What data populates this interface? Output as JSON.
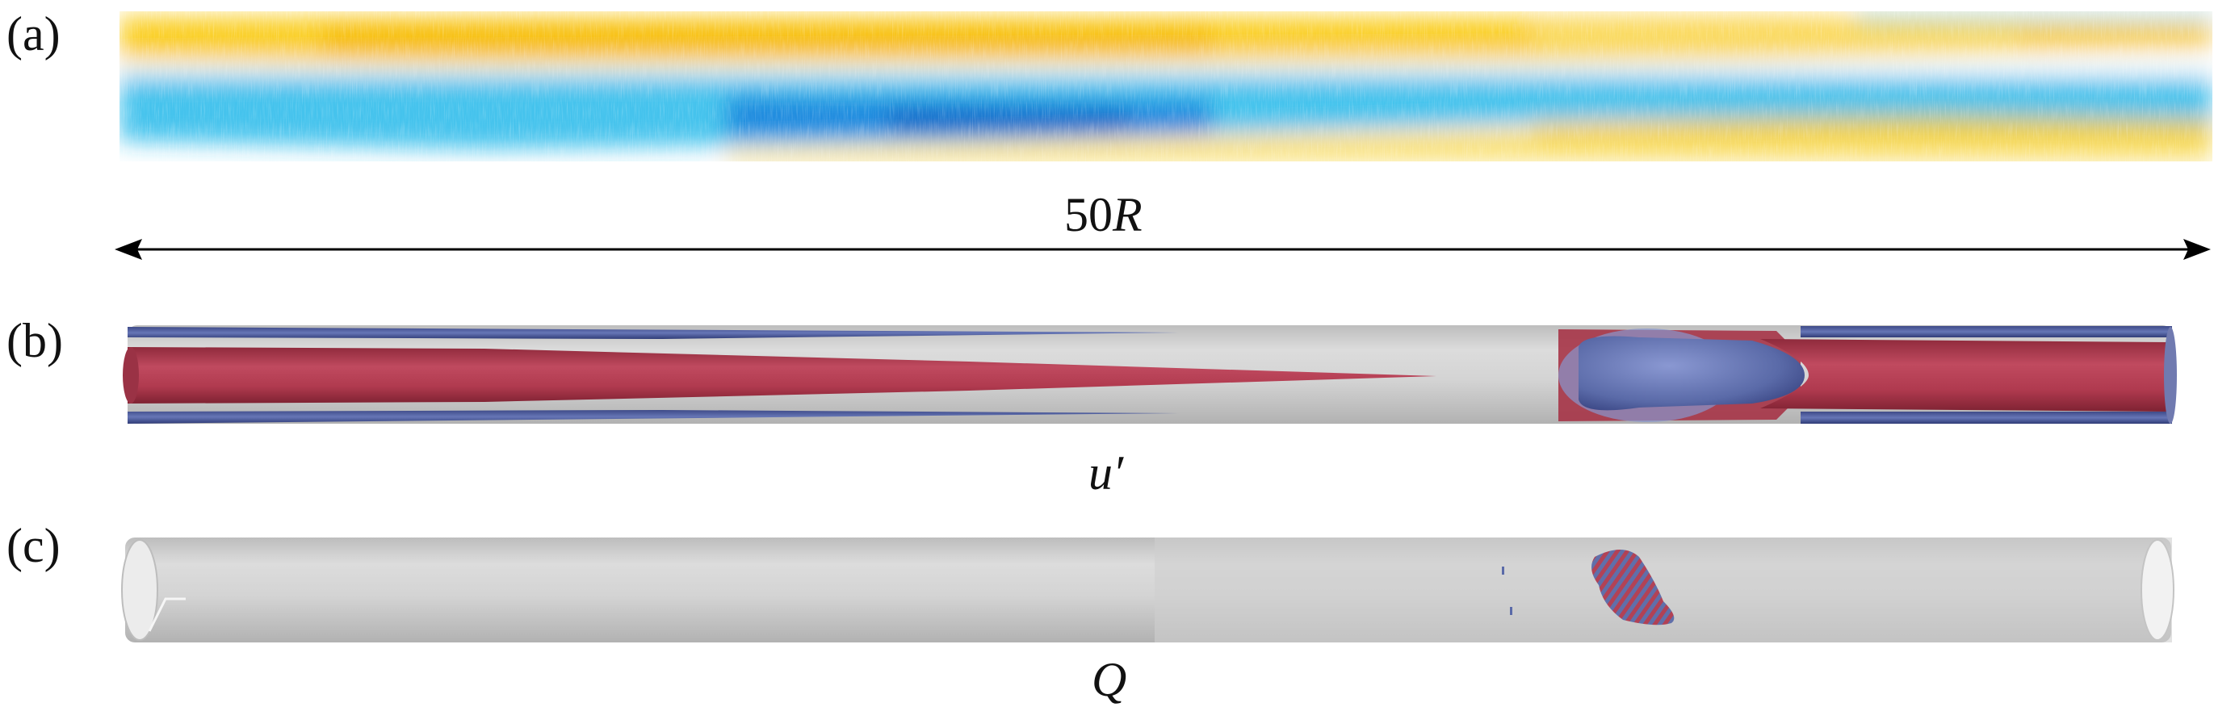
{
  "panels": {
    "a": {
      "label": "(a)"
    },
    "b": {
      "label": "(b)",
      "caption": "u′"
    },
    "c": {
      "label": "(c)",
      "caption": "Q"
    }
  },
  "scale_bar": {
    "label_num": "50",
    "label_var": "R"
  },
  "colors": {
    "field_positive": "#f7c300",
    "field_negative": "#1fb6e8",
    "field_strong_negative": "#1270d6",
    "isosurface_positive": "#b03a4f",
    "isosurface_negative": "#5a6aa8",
    "pipe": "#d2d2d2"
  }
}
